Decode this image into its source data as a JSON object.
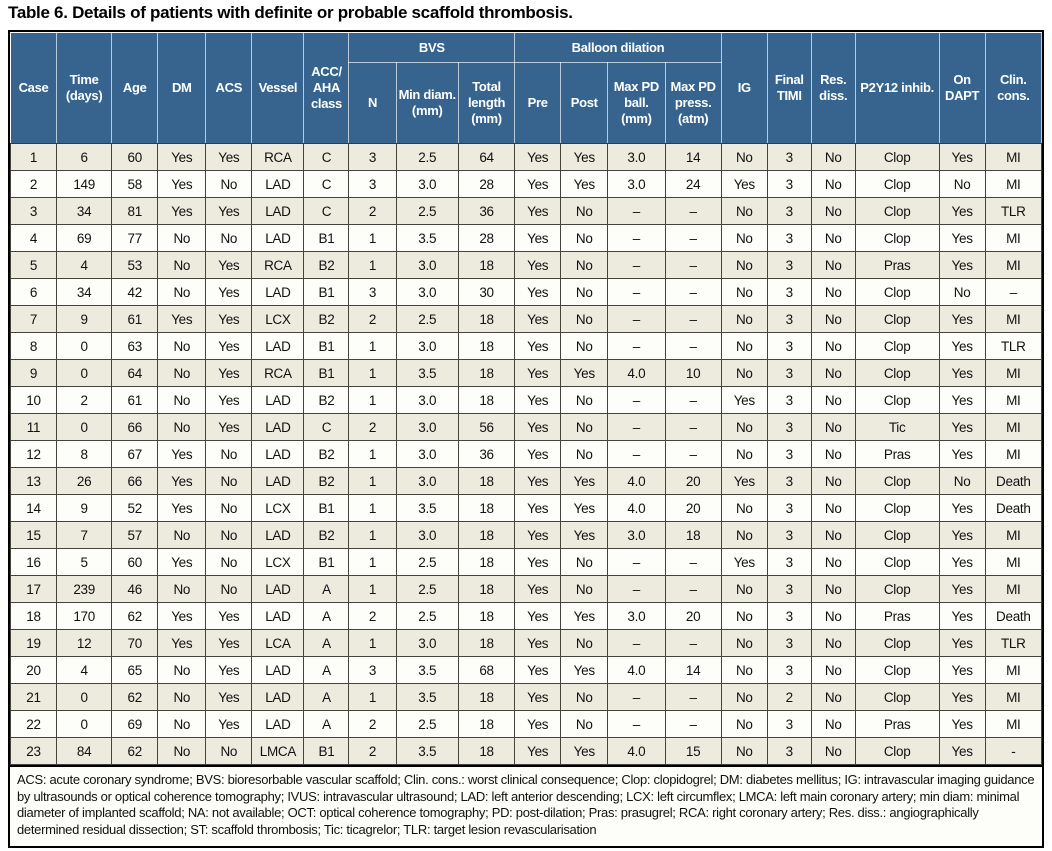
{
  "title": "Table 6. Details of patients with definite or probable scaffold thrombosis.",
  "colors": {
    "header_bg": "#36648f",
    "header_text": "#ffffff",
    "row_odd_bg": "#edeade",
    "row_even_bg": "#fdfdfa",
    "border_dark": "#000000"
  },
  "columns": {
    "case": "Case",
    "time": "Time (days)",
    "age": "Age",
    "dm": "DM",
    "acs": "ACS",
    "vessel": "Vessel",
    "acc_aha": "ACC/ AHA class",
    "bvs_group": "BVS",
    "bvs_n": "N",
    "bvs_min_diam": "Min diam. (mm)",
    "bvs_total_length": "Total length (mm)",
    "balloon_group": "Balloon dilation",
    "pre": "Pre",
    "post": "Post",
    "max_pd_ball": "Max PD ball. (mm)",
    "max_pd_press": "Max PD press. (atm)",
    "ig": "IG",
    "final_timi": "Final TIMI",
    "res_diss": "Res. diss.",
    "p2y12": "P2Y12 inhib.",
    "on_dapt": "On DAPT",
    "clin_cons": "Clin. cons."
  },
  "rows": [
    [
      "1",
      "6",
      "60",
      "Yes",
      "Yes",
      "RCA",
      "C",
      "3",
      "2.5",
      "64",
      "Yes",
      "Yes",
      "3.0",
      "14",
      "No",
      "3",
      "No",
      "Clop",
      "Yes",
      "MI"
    ],
    [
      "2",
      "149",
      "58",
      "Yes",
      "No",
      "LAD",
      "C",
      "3",
      "3.0",
      "28",
      "Yes",
      "Yes",
      "3.0",
      "24",
      "Yes",
      "3",
      "No",
      "Clop",
      "No",
      "MI"
    ],
    [
      "3",
      "34",
      "81",
      "Yes",
      "Yes",
      "LAD",
      "C",
      "2",
      "2.5",
      "36",
      "Yes",
      "No",
      "–",
      "–",
      "No",
      "3",
      "No",
      "Clop",
      "Yes",
      "TLR"
    ],
    [
      "4",
      "69",
      "77",
      "No",
      "No",
      "LAD",
      "B1",
      "1",
      "3.5",
      "28",
      "Yes",
      "No",
      "–",
      "–",
      "No",
      "3",
      "No",
      "Clop",
      "Yes",
      "MI"
    ],
    [
      "5",
      "4",
      "53",
      "No",
      "Yes",
      "RCA",
      "B2",
      "1",
      "3.0",
      "18",
      "Yes",
      "No",
      "–",
      "–",
      "No",
      "3",
      "No",
      "Pras",
      "Yes",
      "MI"
    ],
    [
      "6",
      "34",
      "42",
      "No",
      "Yes",
      "LAD",
      "B1",
      "3",
      "3.0",
      "30",
      "Yes",
      "No",
      "–",
      "–",
      "No",
      "3",
      "No",
      "Clop",
      "No",
      "–"
    ],
    [
      "7",
      "9",
      "61",
      "Yes",
      "Yes",
      "LCX",
      "B2",
      "2",
      "2.5",
      "18",
      "Yes",
      "No",
      "–",
      "–",
      "No",
      "3",
      "No",
      "Clop",
      "Yes",
      "MI"
    ],
    [
      "8",
      "0",
      "63",
      "No",
      "Yes",
      "LAD",
      "B1",
      "1",
      "3.0",
      "18",
      "Yes",
      "No",
      "–",
      "–",
      "No",
      "3",
      "No",
      "Clop",
      "Yes",
      "TLR"
    ],
    [
      "9",
      "0",
      "64",
      "No",
      "Yes",
      "RCA",
      "B1",
      "1",
      "3.5",
      "18",
      "Yes",
      "Yes",
      "4.0",
      "10",
      "No",
      "3",
      "No",
      "Clop",
      "Yes",
      "MI"
    ],
    [
      "10",
      "2",
      "61",
      "No",
      "Yes",
      "LAD",
      "B2",
      "1",
      "3.0",
      "18",
      "Yes",
      "No",
      "–",
      "–",
      "Yes",
      "3",
      "No",
      "Clop",
      "Yes",
      "MI"
    ],
    [
      "11",
      "0",
      "66",
      "No",
      "Yes",
      "LAD",
      "C",
      "2",
      "3.0",
      "56",
      "Yes",
      "No",
      "–",
      "–",
      "No",
      "3",
      "No",
      "Tic",
      "Yes",
      "MI"
    ],
    [
      "12",
      "8",
      "67",
      "Yes",
      "No",
      "LAD",
      "B2",
      "1",
      "3.0",
      "36",
      "Yes",
      "No",
      "–",
      "–",
      "No",
      "3",
      "No",
      "Pras",
      "Yes",
      "MI"
    ],
    [
      "13",
      "26",
      "66",
      "Yes",
      "No",
      "LAD",
      "B2",
      "1",
      "3.0",
      "18",
      "Yes",
      "Yes",
      "4.0",
      "20",
      "Yes",
      "3",
      "No",
      "Clop",
      "No",
      "Death"
    ],
    [
      "14",
      "9",
      "52",
      "Yes",
      "No",
      "LCX",
      "B1",
      "1",
      "3.5",
      "18",
      "Yes",
      "Yes",
      "4.0",
      "20",
      "No",
      "3",
      "No",
      "Clop",
      "Yes",
      "Death"
    ],
    [
      "15",
      "7",
      "57",
      "No",
      "No",
      "LAD",
      "B2",
      "1",
      "3.0",
      "18",
      "Yes",
      "Yes",
      "3.0",
      "18",
      "No",
      "3",
      "No",
      "Clop",
      "Yes",
      "MI"
    ],
    [
      "16",
      "5",
      "60",
      "Yes",
      "No",
      "LCX",
      "B1",
      "1",
      "2.5",
      "18",
      "Yes",
      "No",
      "–",
      "–",
      "Yes",
      "3",
      "No",
      "Clop",
      "Yes",
      "MI"
    ],
    [
      "17",
      "239",
      "46",
      "No",
      "No",
      "LAD",
      "A",
      "1",
      "2.5",
      "18",
      "Yes",
      "No",
      "–",
      "–",
      "No",
      "3",
      "No",
      "Clop",
      "Yes",
      "MI"
    ],
    [
      "18",
      "170",
      "62",
      "Yes",
      "Yes",
      "LAD",
      "A",
      "2",
      "2.5",
      "18",
      "Yes",
      "Yes",
      "3.0",
      "20",
      "No",
      "3",
      "No",
      "Pras",
      "Yes",
      "Death"
    ],
    [
      "19",
      "12",
      "70",
      "Yes",
      "Yes",
      "LCA",
      "A",
      "1",
      "3.0",
      "18",
      "Yes",
      "No",
      "–",
      "–",
      "No",
      "3",
      "No",
      "Clop",
      "Yes",
      "TLR"
    ],
    [
      "20",
      "4",
      "65",
      "No",
      "Yes",
      "LAD",
      "A",
      "3",
      "3.5",
      "68",
      "Yes",
      "Yes",
      "4.0",
      "14",
      "No",
      "3",
      "No",
      "Clop",
      "Yes",
      "MI"
    ],
    [
      "21",
      "0",
      "62",
      "No",
      "Yes",
      "LAD",
      "A",
      "1",
      "3.5",
      "18",
      "Yes",
      "No",
      "–",
      "–",
      "No",
      "2",
      "No",
      "Clop",
      "Yes",
      "MI"
    ],
    [
      "22",
      "0",
      "69",
      "No",
      "Yes",
      "LAD",
      "A",
      "2",
      "2.5",
      "18",
      "Yes",
      "No",
      "–",
      "–",
      "No",
      "3",
      "No",
      "Pras",
      "Yes",
      "MI"
    ],
    [
      "23",
      "84",
      "62",
      "No",
      "No",
      "LMCA",
      "B1",
      "2",
      "3.5",
      "18",
      "Yes",
      "Yes",
      "4.0",
      "15",
      "No",
      "3",
      "No",
      "Clop",
      "Yes",
      "-"
    ]
  ],
  "footnote": "ACS: acute coronary syndrome; BVS: bioresorbable vascular scaffold; Clin. cons.: worst clinical consequence; Clop: clopidogrel; DM: diabetes mellitus; IG: intravascular imaging guidance by ultrasounds or optical coherence tomography; IVUS: intravascular ultrasound; LAD: left anterior descending; LCX: left circumflex; LMCA: left main coronary artery; min diam: minimal diameter of implanted scaffold; NA: not available; OCT: optical coherence tomography; PD: post-dilation; Pras: prasugrel; RCA: right coronary artery; Res. diss.: angiographically determined residual dissection; ST: scaffold thrombosis; Tic: ticagrelor; TLR: target lesion revascularisation"
}
